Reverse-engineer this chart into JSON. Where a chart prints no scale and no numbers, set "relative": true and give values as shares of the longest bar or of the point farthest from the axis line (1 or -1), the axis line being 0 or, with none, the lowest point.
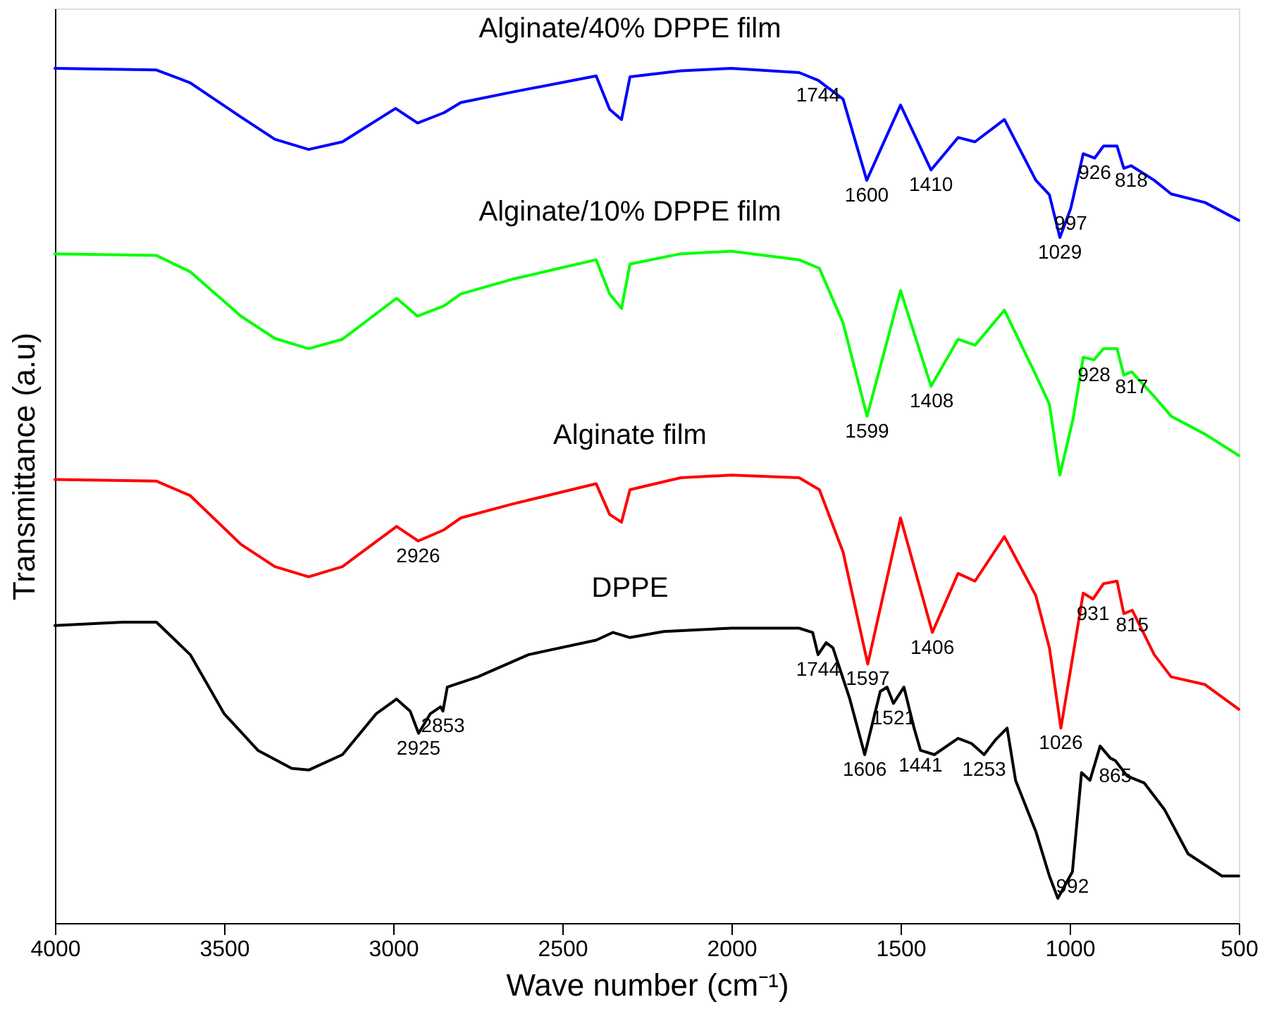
{
  "chart_data": {
    "type": "line",
    "relative": true,
    "xlabel": "Wave number (cm⁻¹)",
    "ylabel": "Transmittance (a.u)",
    "xlim": [
      4000,
      500
    ],
    "xticks": [
      4000,
      3500,
      3000,
      2500,
      2000,
      1500,
      1000,
      500
    ],
    "grid": false,
    "tick_labels": "x",
    "marker": "none",
    "line_style": "solid",
    "series": [
      {
        "name": "Alginate/40% DPPE film",
        "color": "#0000ff",
        "x": [
          4000,
          3700,
          3600,
          3450,
          3350,
          3250,
          3150,
          2993,
          2928,
          2850,
          2800,
          2650,
          2400,
          2360,
          2325,
          2300,
          2150,
          2000,
          1800,
          1744,
          1670,
          1600,
          1500,
          1410,
          1330,
          1280,
          1193,
          1100,
          1060,
          1029,
          997,
          960,
          926,
          900,
          860,
          840,
          818,
          750,
          700,
          600,
          500
        ],
        "values": [
          1.0,
          0.998,
          0.983,
          0.943,
          0.917,
          0.905,
          0.914,
          0.953,
          0.936,
          0.948,
          0.96,
          0.972,
          0.991,
          0.952,
          0.94,
          0.99,
          0.997,
          1.0,
          0.995,
          0.986,
          0.964,
          0.869,
          0.957,
          0.881,
          0.919,
          0.914,
          0.94,
          0.869,
          0.852,
          0.802,
          0.836,
          0.9,
          0.895,
          0.909,
          0.909,
          0.883,
          0.886,
          0.869,
          0.853,
          0.843,
          0.822
        ]
      },
      {
        "name": "Alginate/10% DPPE film",
        "color": "#00ff00",
        "x": [
          4000,
          3700,
          3600,
          3450,
          3350,
          3250,
          3150,
          2990,
          2928,
          2850,
          2800,
          2650,
          2400,
          2360,
          2325,
          2300,
          2150,
          2000,
          1800,
          1740,
          1670,
          1599,
          1500,
          1410,
          1330,
          1280,
          1193,
          1100,
          1060,
          1029,
          990,
          960,
          928,
          900,
          860,
          840,
          817,
          750,
          700,
          600,
          500
        ],
        "values": [
          0.783,
          0.781,
          0.762,
          0.71,
          0.684,
          0.672,
          0.683,
          0.731,
          0.71,
          0.722,
          0.736,
          0.753,
          0.776,
          0.736,
          0.719,
          0.771,
          0.783,
          0.786,
          0.776,
          0.766,
          0.702,
          0.593,
          0.74,
          0.628,
          0.683,
          0.676,
          0.717,
          0.641,
          0.607,
          0.524,
          0.59,
          0.662,
          0.659,
          0.672,
          0.672,
          0.641,
          0.645,
          0.616,
          0.593,
          0.572,
          0.547
        ]
      },
      {
        "name": "Alginate film",
        "color": "#ff0000",
        "x": [
          4000,
          3700,
          3600,
          3450,
          3350,
          3250,
          3150,
          2990,
          2926,
          2850,
          2800,
          2650,
          2400,
          2360,
          2325,
          2300,
          2150,
          2000,
          1800,
          1740,
          1670,
          1597,
          1500,
          1406,
          1330,
          1280,
          1193,
          1100,
          1060,
          1026,
          990,
          960,
          931,
          900,
          860,
          840,
          815,
          750,
          700,
          600,
          500
        ],
        "values": [
          0.519,
          0.517,
          0.5,
          0.443,
          0.417,
          0.405,
          0.417,
          0.464,
          0.447,
          0.46,
          0.474,
          0.49,
          0.514,
          0.478,
          0.469,
          0.507,
          0.521,
          0.524,
          0.521,
          0.507,
          0.434,
          0.303,
          0.474,
          0.34,
          0.409,
          0.4,
          0.452,
          0.383,
          0.322,
          0.228,
          0.314,
          0.386,
          0.379,
          0.397,
          0.4,
          0.362,
          0.366,
          0.314,
          0.288,
          0.279,
          0.25
        ]
      },
      {
        "name": "DPPE",
        "color": "#000000",
        "x": [
          4000,
          3800,
          3700,
          3600,
          3500,
          3400,
          3300,
          3250,
          3150,
          3050,
          2990,
          2950,
          2925,
          2890,
          2860,
          2853,
          2840,
          2750,
          2600,
          2400,
          2350,
          2300,
          2200,
          2000,
          1800,
          1760,
          1744,
          1720,
          1700,
          1650,
          1606,
          1560,
          1540,
          1521,
          1490,
          1460,
          1441,
          1400,
          1330,
          1290,
          1253,
          1220,
          1185,
          1160,
          1100,
          1060,
          1035,
          992,
          965,
          940,
          910,
          880,
          865,
          830,
          780,
          720,
          650,
          550,
          500
        ],
        "values": [
          0.348,
          0.352,
          0.352,
          0.314,
          0.245,
          0.202,
          0.181,
          0.179,
          0.197,
          0.245,
          0.262,
          0.248,
          0.222,
          0.245,
          0.253,
          0.248,
          0.276,
          0.288,
          0.314,
          0.331,
          0.34,
          0.334,
          0.341,
          0.345,
          0.345,
          0.34,
          0.314,
          0.328,
          0.322,
          0.262,
          0.197,
          0.271,
          0.276,
          0.257,
          0.276,
          0.228,
          0.202,
          0.197,
          0.216,
          0.21,
          0.197,
          0.214,
          0.228,
          0.167,
          0.107,
          0.055,
          0.029,
          0.06,
          0.176,
          0.167,
          0.207,
          0.193,
          0.19,
          0.172,
          0.164,
          0.133,
          0.081,
          0.055,
          0.055
        ]
      }
    ],
    "annotations": [
      {
        "text": "1744",
        "x": 1744,
        "y": 0.986
      },
      {
        "text": "1600",
        "x": 1600,
        "y": 0.869
      },
      {
        "text": "1410",
        "x": 1410,
        "y": 0.881
      },
      {
        "text": "1029",
        "x": 1029,
        "y": 0.802
      },
      {
        "text": "997",
        "x": 997,
        "y": 0.836
      },
      {
        "text": "926",
        "x": 926,
        "y": 0.895
      },
      {
        "text": "818",
        "x": 818,
        "y": 0.886
      },
      {
        "text": "1599",
        "x": 1599,
        "y": 0.593
      },
      {
        "text": "1408",
        "x": 1408,
        "y": 0.628
      },
      {
        "text": "928",
        "x": 928,
        "y": 0.659
      },
      {
        "text": "817",
        "x": 817,
        "y": 0.645
      },
      {
        "text": "2926",
        "x": 2926,
        "y": 0.447
      },
      {
        "text": "1597",
        "x": 1597,
        "y": 0.303
      },
      {
        "text": "1406",
        "x": 1406,
        "y": 0.34
      },
      {
        "text": "1026",
        "x": 1026,
        "y": 0.228
      },
      {
        "text": "931",
        "x": 931,
        "y": 0.379
      },
      {
        "text": "815",
        "x": 815,
        "y": 0.366
      },
      {
        "text": "2925",
        "x": 2925,
        "y": 0.222
      },
      {
        "text": "2853",
        "x": 2853,
        "y": 0.248
      },
      {
        "text": "1744",
        "x": 1744,
        "y": 0.314
      },
      {
        "text": "1606",
        "x": 1606,
        "y": 0.197
      },
      {
        "text": "1521",
        "x": 1521,
        "y": 0.257
      },
      {
        "text": "1441",
        "x": 1441,
        "y": 0.202
      },
      {
        "text": "1253",
        "x": 1253,
        "y": 0.197
      },
      {
        "text": "992",
        "x": 992,
        "y": 0.06
      },
      {
        "text": "865",
        "x": 865,
        "y": 0.19
      }
    ]
  }
}
